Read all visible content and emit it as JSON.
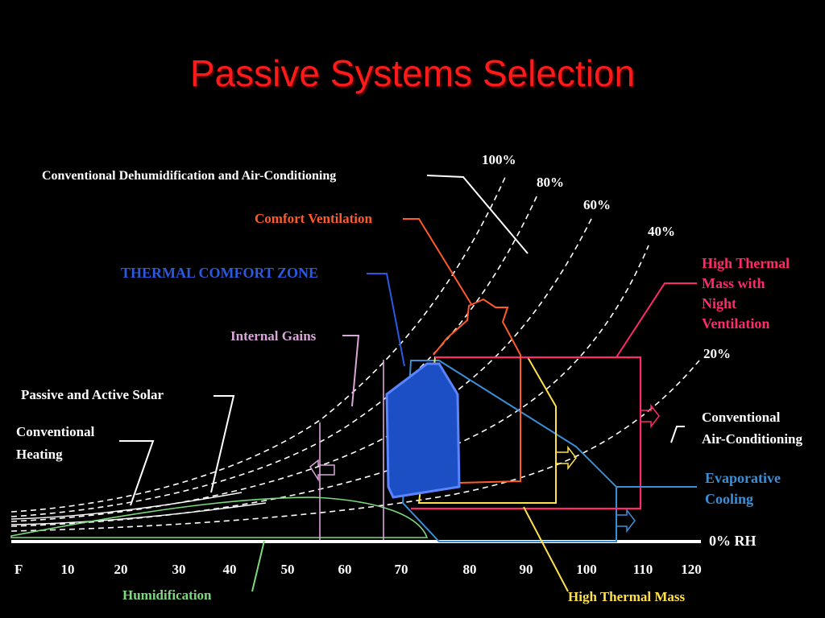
{
  "slide": {
    "title": "Passive Systems Selection"
  },
  "chart_data": {
    "type": "psychrometric-strategy-chart",
    "xlabel": "F",
    "x_ticks": [
      "10",
      "20",
      "30",
      "40",
      "50",
      "60",
      "70",
      "80",
      "90",
      "100",
      "110",
      "120"
    ],
    "baseline_label": "0% RH",
    "rh_curves": [
      "100%",
      "80%",
      "60%",
      "40%",
      "20%"
    ],
    "zones": {
      "dehum": "Conventional Dehumidification and Air-Conditioning",
      "comfort_vent": "Comfort Ventilation",
      "thermal_zone": "THERMAL COMFORT ZONE",
      "internal_gains": "Internal Gains",
      "solar": "Passive and Active Solar",
      "conv_heating_1": "Conventional",
      "conv_heating_2": "Heating",
      "htm_night_1": "High Thermal",
      "htm_night_2": "Mass with",
      "htm_night_3": "Night",
      "htm_night_4": "Ventilation",
      "conv_ac_1": "Conventional",
      "conv_ac_2": "Air-Conditioning",
      "evap_1": "Evaporative",
      "evap_2": "Cooling",
      "humidification": "Humidification",
      "high_thermal_mass": "High Thermal Mass"
    },
    "colors": {
      "title": "#ff1a1a",
      "white": "#ffffff",
      "comfort_vent": "#ff5a2a",
      "thermal_zone": "#2a5adf",
      "internal_gains": "#d9a6d9",
      "htm_night": "#ff2a6a",
      "evaporative": "#3a90d8",
      "humidification": "#7ed97e",
      "high_thermal_mass": "#ffe14a"
    }
  }
}
